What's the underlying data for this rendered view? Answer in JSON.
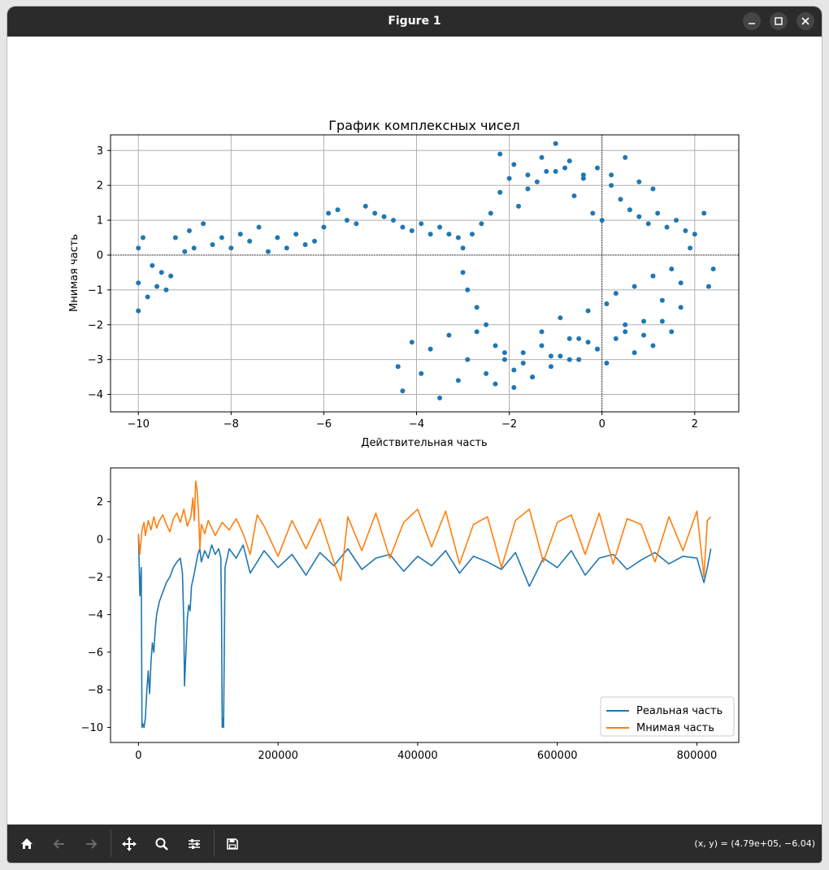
{
  "window": {
    "title": "Figure 1",
    "colors": {
      "titlebar": "#2b2b2b",
      "toolbar": "#2b2b2b"
    }
  },
  "toolbar": {
    "buttons": [
      "home-icon",
      "back-arrow-icon",
      "forward-arrow-icon",
      "pan-icon",
      "zoom-icon",
      "configure-subplots-icon",
      "save-icon"
    ],
    "status": "(x, y) = (4.79e+05, −6.04)"
  },
  "chart_data": [
    {
      "type": "scatter",
      "title": "График комплексных чисел",
      "xlabel": "Действительная часть",
      "ylabel": "Мнимая часть",
      "xlim": [
        -10.6,
        2.95
      ],
      "ylim": [
        -4.5,
        3.45
      ],
      "xticks": [
        -10,
        -8,
        -6,
        -4,
        -2,
        0,
        2
      ],
      "yticks": [
        -4,
        -3,
        -2,
        -1,
        0,
        1,
        2,
        3
      ],
      "grid": true,
      "reference_lines": {
        "x": 0,
        "y": 0,
        "style": "dotted"
      },
      "color": "#1f77b4",
      "x": [
        -10.0,
        -10.0,
        -10.0,
        -9.9,
        -9.8,
        -9.7,
        -9.6,
        -9.5,
        -9.4,
        -9.3,
        -9.2,
        -9.0,
        -8.9,
        -8.8,
        -8.6,
        -8.4,
        -8.2,
        -8.0,
        -7.8,
        -7.6,
        -7.4,
        -7.2,
        -7.0,
        -6.8,
        -6.6,
        -6.4,
        -6.2,
        -6.0,
        -5.9,
        -5.7,
        -5.5,
        -5.3,
        -5.1,
        -4.9,
        -4.7,
        -4.5,
        -4.3,
        -4.1,
        -3.9,
        -3.7,
        -3.5,
        -3.3,
        -3.1,
        -3.0,
        -3.0,
        -2.9,
        -2.8,
        -2.7,
        -2.6,
        -2.5,
        -2.4,
        -2.3,
        -2.2,
        -2.1,
        -2.0,
        -1.9,
        -1.8,
        -1.7,
        -1.6,
        -1.5,
        -1.4,
        -1.3,
        -1.2,
        -1.1,
        -1.0,
        -0.9,
        -0.8,
        -0.7,
        -0.6,
        -0.5,
        -0.4,
        -0.3,
        -0.2,
        -0.1,
        0.0,
        0.1,
        0.2,
        0.3,
        0.4,
        0.5,
        0.6,
        0.7,
        0.8,
        0.9,
        1.0,
        1.1,
        1.2,
        1.3,
        1.4,
        1.5,
        1.6,
        1.7,
        1.8,
        1.9,
        2.0,
        2.2,
        2.3,
        2.4,
        -4.4,
        -4.3,
        -4.1,
        -3.9,
        -3.7,
        -3.5,
        -3.3,
        -3.1,
        -2.9,
        -2.7,
        -2.5,
        -2.3,
        -2.1,
        -1.9,
        -1.7,
        -1.5,
        -1.3,
        -1.1,
        -0.9,
        -0.7,
        -0.5,
        -0.3,
        -0.1,
        0.1,
        0.3,
        0.5,
        0.7,
        0.9,
        1.1,
        1.3,
        1.5,
        1.7,
        -2.2,
        -1.9,
        -1.6,
        -1.3,
        -1.0,
        -0.7,
        -0.4,
        -0.1,
        0.2,
        0.5,
        0.8,
        1.1
      ],
      "y": [
        -1.6,
        -0.8,
        0.2,
        0.5,
        -1.2,
        -0.3,
        -0.9,
        -0.5,
        -1.0,
        -0.6,
        0.5,
        0.1,
        0.7,
        0.2,
        0.9,
        0.3,
        0.5,
        0.2,
        0.6,
        0.4,
        0.8,
        0.1,
        0.5,
        0.2,
        0.6,
        0.3,
        0.4,
        0.8,
        1.2,
        1.3,
        1.0,
        0.9,
        1.4,
        1.2,
        1.1,
        1.0,
        0.8,
        0.7,
        0.9,
        0.6,
        0.8,
        0.6,
        0.5,
        0.2,
        -0.5,
        -1.0,
        0.6,
        -1.5,
        0.9,
        -2.0,
        1.2,
        -2.6,
        1.8,
        -3.0,
        2.2,
        -3.3,
        1.4,
        -2.8,
        1.9,
        -3.5,
        2.1,
        -2.2,
        2.4,
        -2.9,
        3.2,
        -1.8,
        2.5,
        -3.0,
        1.7,
        -2.4,
        2.3,
        -1.6,
        1.2,
        -2.7,
        1.0,
        -1.4,
        2.0,
        -1.1,
        1.6,
        -2.2,
        1.3,
        -0.9,
        1.1,
        -1.9,
        0.9,
        -0.6,
        1.2,
        -1.3,
        0.8,
        -0.4,
        1.0,
        -0.8,
        0.7,
        0.2,
        0.6,
        1.2,
        -0.9,
        -0.4,
        -3.2,
        -3.9,
        -2.5,
        -3.4,
        -2.7,
        -4.1,
        -2.3,
        -3.6,
        -3.0,
        -2.2,
        -3.4,
        -3.7,
        -2.8,
        -3.8,
        -3.1,
        -3.5,
        -2.6,
        -3.2,
        -2.9,
        -2.4,
        -3.0,
        -2.5,
        -2.7,
        -3.1,
        -2.4,
        -2.0,
        -2.8,
        -2.3,
        -2.6,
        -1.9,
        -2.2,
        -1.5,
        2.9,
        2.6,
        2.3,
        2.8,
        2.4,
        2.7,
        2.2,
        2.5,
        2.3,
        2.8,
        2.1,
        1.9
      ]
    },
    {
      "type": "line",
      "title": "",
      "xlabel": "",
      "ylabel": "",
      "xlim": [
        -40000,
        860000
      ],
      "ylim": [
        -10.8,
        3.8
      ],
      "xticks": [
        0,
        200000,
        400000,
        600000,
        800000
      ],
      "yticks": [
        -10,
        -8,
        -6,
        -4,
        -2,
        0,
        2
      ],
      "legend_position": "lower-right",
      "series": [
        {
          "name": "Реальная часть",
          "color": "#1f77b4",
          "x": [
            0,
            2000,
            4000,
            5000,
            6000,
            8000,
            10000,
            12000,
            14000,
            16000,
            18000,
            20000,
            22000,
            24000,
            26000,
            30000,
            35000,
            40000,
            45000,
            50000,
            55000,
            60000,
            63000,
            65000,
            66000,
            68000,
            70000,
            72000,
            74000,
            76000,
            80000,
            85000,
            88000,
            90000,
            95000,
            100000,
            105000,
            110000,
            115000,
            118000,
            119000,
            120000,
            121000,
            122000,
            124000,
            130000,
            140000,
            150000,
            160000,
            170000,
            180000,
            200000,
            220000,
            240000,
            260000,
            280000,
            300000,
            320000,
            340000,
            360000,
            380000,
            400000,
            420000,
            440000,
            460000,
            480000,
            500000,
            520000,
            540000,
            560000,
            580000,
            600000,
            620000,
            640000,
            660000,
            680000,
            700000,
            720000,
            740000,
            760000,
            780000,
            800000,
            810000,
            815000,
            820000
          ],
          "y": [
            0.2,
            -3.0,
            -1.5,
            -10.0,
            -9.8,
            -10.0,
            -9.5,
            -8.0,
            -7.0,
            -8.2,
            -6.5,
            -5.5,
            -6.0,
            -4.8,
            -4.0,
            -3.3,
            -2.8,
            -2.3,
            -2.0,
            -1.5,
            -1.2,
            -1.0,
            -1.8,
            -4.5,
            -7.8,
            -6.0,
            -4.2,
            -3.5,
            -3.8,
            -2.5,
            -1.8,
            -0.8,
            -0.5,
            -1.2,
            -0.6,
            -1.0,
            -0.3,
            -0.8,
            -0.5,
            -1.0,
            -4.0,
            -10.0,
            -9.5,
            -10.0,
            -1.5,
            -0.5,
            -1.0,
            -0.3,
            -1.8,
            -1.2,
            -0.6,
            -1.5,
            -0.8,
            -1.9,
            -0.7,
            -1.4,
            -0.5,
            -1.6,
            -1.0,
            -0.8,
            -1.7,
            -0.9,
            -1.4,
            -0.6,
            -1.8,
            -0.9,
            -1.2,
            -1.6,
            -0.7,
            -2.5,
            -1.0,
            -1.5,
            -0.6,
            -1.9,
            -1.0,
            -0.8,
            -1.6,
            -1.1,
            -0.7,
            -1.3,
            -0.9,
            -1.0,
            -2.3,
            -1.5,
            -0.5
          ]
        },
        {
          "name": "Мнимая часть",
          "color": "#ff7f0e",
          "x": [
            0,
            2000,
            5000,
            8000,
            10000,
            14000,
            18000,
            22000,
            26000,
            30000,
            35000,
            40000,
            45000,
            50000,
            55000,
            60000,
            65000,
            70000,
            75000,
            78000,
            80000,
            82000,
            84000,
            86000,
            88000,
            90000,
            95000,
            100000,
            110000,
            120000,
            130000,
            140000,
            150000,
            160000,
            170000,
            180000,
            200000,
            220000,
            240000,
            260000,
            280000,
            290000,
            300000,
            320000,
            340000,
            360000,
            380000,
            400000,
            420000,
            440000,
            460000,
            480000,
            500000,
            520000,
            540000,
            560000,
            580000,
            600000,
            620000,
            640000,
            660000,
            680000,
            700000,
            720000,
            740000,
            760000,
            780000,
            800000,
            810000,
            815000,
            820000
          ],
          "y": [
            0.3,
            -0.8,
            0.5,
            0.9,
            0.2,
            1.0,
            0.5,
            1.2,
            0.6,
            1.0,
            1.3,
            0.8,
            0.4,
            1.1,
            1.4,
            0.9,
            1.6,
            0.7,
            1.2,
            2.2,
            1.0,
            3.1,
            2.6,
            1.5,
            -0.5,
            0.8,
            0.3,
            1.0,
            0.2,
            0.9,
            0.5,
            1.1,
            0.3,
            -0.8,
            1.3,
            0.7,
            -0.9,
            1.0,
            -0.5,
            1.1,
            -1.2,
            -2.2,
            1.2,
            -0.6,
            1.4,
            -1.0,
            0.9,
            1.6,
            -0.4,
            1.5,
            -1.3,
            0.8,
            1.2,
            -1.5,
            1.0,
            1.6,
            -1.2,
            0.9,
            1.3,
            -0.8,
            1.4,
            -1.3,
            1.1,
            0.8,
            -1.2,
            1.2,
            -0.6,
            1.5,
            -2.0,
            1.0,
            1.2
          ]
        }
      ]
    }
  ]
}
